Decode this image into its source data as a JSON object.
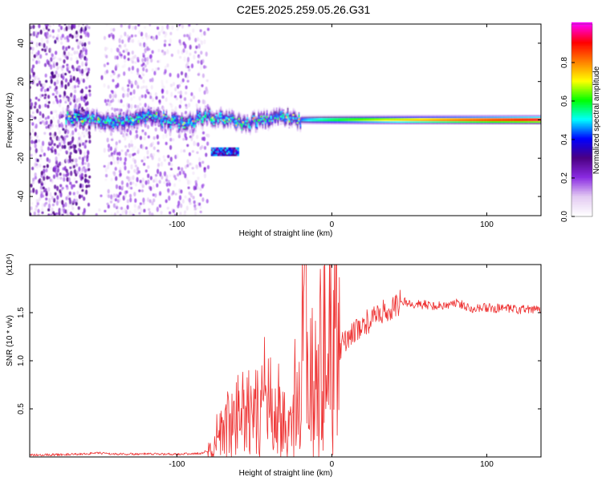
{
  "title": "C2E5.2025.259.05.26.G31",
  "chart_data": [
    {
      "type": "heatmap",
      "xlabel": "Height of straight line (km)",
      "ylabel": "Frequency (Hz)",
      "xlim": [
        -195,
        135
      ],
      "ylim": [
        -50,
        50
      ],
      "x_ticks": [
        -100,
        0,
        100
      ],
      "y_ticks": [
        -40,
        -20,
        0,
        20,
        40
      ],
      "colorbar": {
        "label": "Normalized spectral amplitude",
        "range": [
          0.0,
          1.0
        ],
        "ticks": [
          0.0,
          0.2,
          0.4,
          0.6,
          0.8
        ],
        "colormap": [
          "#ffffff",
          "#e2c9f2",
          "#8a2be2",
          "#4b0082",
          "#0000ff",
          "#00ffff",
          "#00ff00",
          "#ffff00",
          "#ff8000",
          "#ff0000",
          "#ff00ff"
        ]
      },
      "features": [
        {
          "name": "scattered noise",
          "x_range": [
            -195,
            -80
          ],
          "frequency_range": [
            -50,
            50
          ],
          "amplitude": 0.15
        },
        {
          "name": "main signal",
          "x_range": [
            -172,
            135
          ],
          "frequency": 0,
          "amplitude_start": 0.45,
          "amplitude_end": 0.95
        },
        {
          "name": "secondary branch",
          "x_range": [
            -78,
            -60
          ],
          "frequency_range": [
            -18,
            -14
          ],
          "amplitude": 0.45
        }
      ]
    },
    {
      "type": "line",
      "xlabel": "Height of straight line (km)",
      "ylabel": "SNR (10 * v/v)",
      "y_multiplier": "(x10⁴)",
      "xlim": [
        -195,
        135
      ],
      "ylim": [
        0,
        2.0
      ],
      "x_ticks": [
        -100,
        0,
        100
      ],
      "y_ticks": [
        0.5,
        1.0,
        1.5
      ],
      "color": "#ee3333",
      "series": [
        {
          "x": [
            -195,
            -170,
            -150,
            -140,
            -120,
            -100,
            -85,
            -78,
            -72,
            -65,
            -58,
            -50,
            -45,
            -40,
            -35,
            -30,
            -25,
            -20,
            -17,
            -15,
            -13,
            -10,
            -5,
            0,
            5,
            10,
            15,
            20,
            25,
            30,
            40,
            45,
            50,
            60,
            70,
            80,
            90,
            100,
            110,
            120,
            135
          ],
          "y": [
            0.02,
            0.025,
            0.04,
            0.03,
            0.03,
            0.03,
            0.035,
            0.08,
            0.22,
            0.35,
            0.45,
            0.42,
            0.45,
            0.38,
            0.45,
            0.42,
            0.38,
            0.65,
            0.95,
            0.8,
            0.7,
            0.95,
            1.05,
            1.1,
            1.12,
            1.25,
            1.3,
            1.38,
            1.42,
            1.48,
            1.55,
            1.62,
            1.6,
            1.58,
            1.57,
            1.6,
            1.55,
            1.55,
            1.54,
            1.53,
            1.53
          ]
        }
      ]
    }
  ]
}
